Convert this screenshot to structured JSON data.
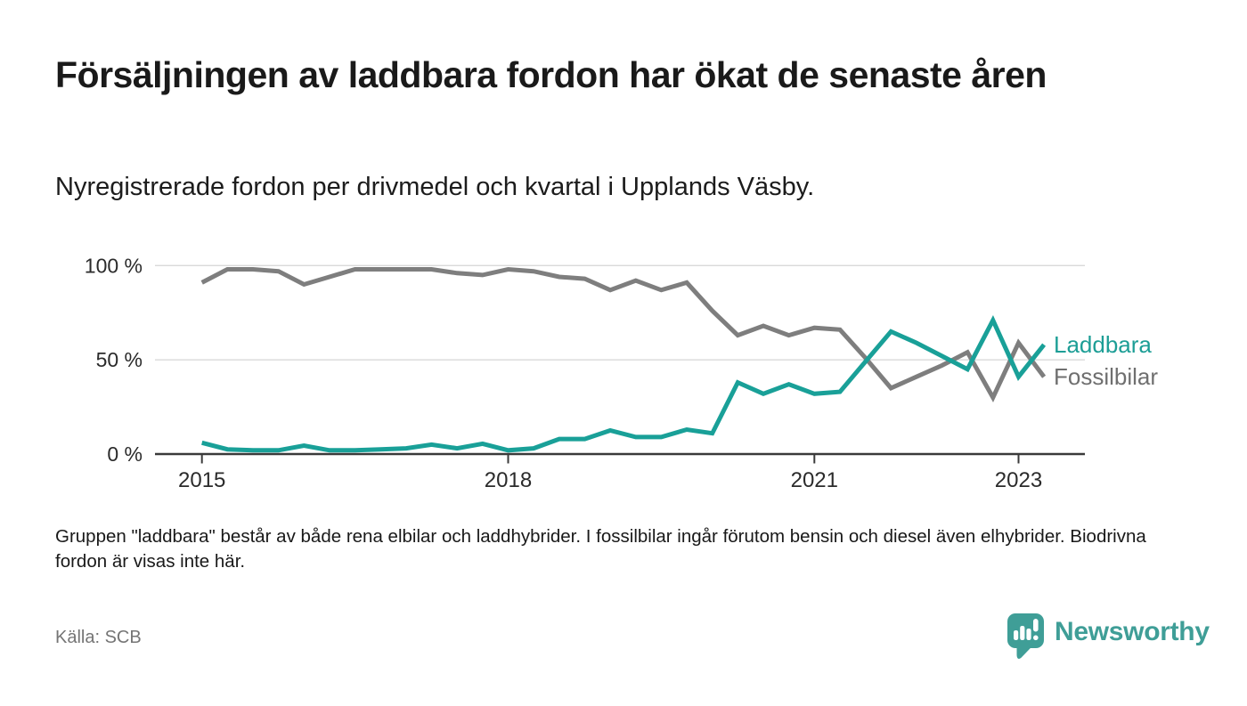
{
  "page": {
    "title": "Försäljningen av laddbara fordon har ökat de senaste åren",
    "subtitle": "Nyregistrerade fordon per drivmedel och kvartal i Upplands Väsby.",
    "note": "Gruppen \"laddbara\" består av både rena elbilar och laddhybrider. I fossilbilar ingår förutom bensin och diesel även elhybrider. Biodrivna fordon är visas inte här.",
    "source": "Källa: SCB"
  },
  "branding": {
    "logo_text": "Newsworthy",
    "logo_icon": "newsworthy-speech-bubble-bar-chart-icon",
    "logo_color": "#3f9e97"
  },
  "chart_data": {
    "type": "line",
    "unit": "%",
    "xlabel": "",
    "ylabel": "",
    "ylim": [
      0,
      100
    ],
    "grid": "horizontal",
    "legend_position": "end-of-line-labels",
    "x": [
      "2015 kv1",
      "2015 kv2",
      "2015 kv3",
      "2015 kv4",
      "2016 kv1",
      "2016 kv2",
      "2016 kv3",
      "2016 kv4",
      "2017 kv1",
      "2017 kv2",
      "2017 kv3",
      "2017 kv4",
      "2018 kv1",
      "2018 kv2",
      "2018 kv3",
      "2018 kv4",
      "2019 kv1",
      "2019 kv2",
      "2019 kv3",
      "2019 kv4",
      "2020 kv1",
      "2020 kv2",
      "2020 kv3",
      "2020 kv4",
      "2021 kv1",
      "2021 kv2",
      "2021 kv3",
      "2021 kv4",
      "2022 kv1",
      "2022 kv2",
      "2022 kv3",
      "2022 kv4",
      "2023 kv1",
      "2023 kv2"
    ],
    "yticks": [
      {
        "value": 0,
        "label": "0 %"
      },
      {
        "value": 50,
        "label": "50 %"
      },
      {
        "value": 100,
        "label": "100 %"
      }
    ],
    "xticks": [
      {
        "index": 0,
        "label": "2015"
      },
      {
        "index": 12,
        "label": "2018"
      },
      {
        "index": 24,
        "label": "2021"
      },
      {
        "index": 32,
        "label": "2023"
      }
    ],
    "series": [
      {
        "name": "Fossilbilar",
        "color": "#7e7e7e",
        "label_color": "#6f6f6f",
        "values": [
          91,
          98,
          98,
          97,
          90,
          94,
          98,
          98,
          98,
          98,
          96,
          95,
          98,
          97,
          94,
          93,
          87,
          92,
          87,
          91,
          76,
          63,
          68,
          63,
          67,
          66,
          51,
          35,
          41,
          47,
          54,
          30,
          59,
          41
        ]
      },
      {
        "name": "Laddbara",
        "color": "#19a098",
        "label_color": "#1d9e96",
        "values": [
          6,
          2.5,
          2,
          2,
          4.5,
          2,
          2,
          2.5,
          3,
          5,
          3,
          5.5,
          2,
          3,
          8,
          8,
          12.5,
          9,
          9,
          13,
          11,
          38,
          32,
          37,
          32,
          33,
          49,
          65,
          59,
          52,
          45,
          71,
          41,
          58
        ]
      }
    ]
  }
}
